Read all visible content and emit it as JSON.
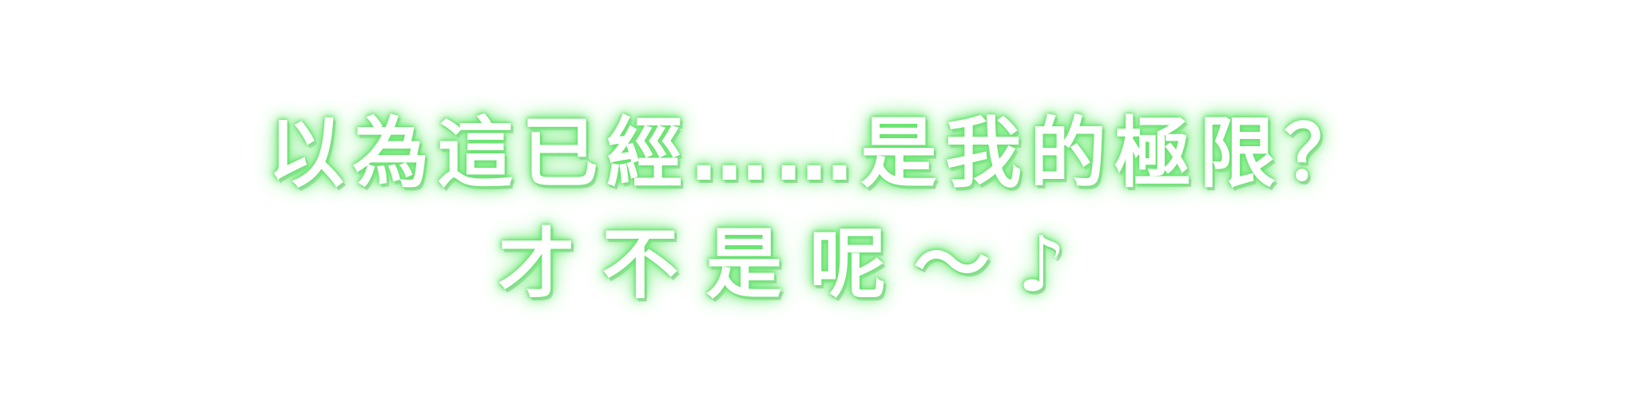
{
  "caption": {
    "line1": "以為這已經……是我的極限？",
    "line2": "才不是呢～♪"
  },
  "colors": {
    "background": "#ffffff",
    "text_fill": "#ffffff",
    "glow": "#63e06a"
  }
}
